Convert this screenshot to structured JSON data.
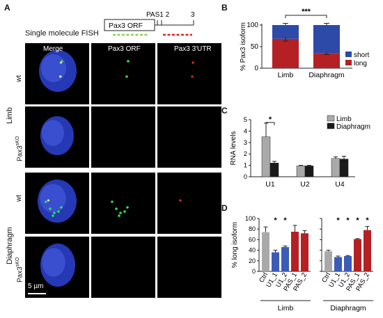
{
  "panel_a": {
    "letter": "A",
    "fish_title": "Single molecule FISH",
    "gene_diagram": {
      "orf_label": "Pax3 ORF",
      "pas_label": "PAS1 2",
      "pas3_label": "3",
      "probe_colors": {
        "orf": "#8fd14f",
        "utr": "#e02020"
      }
    },
    "columns": [
      "Merge",
      "Pax3 ORF",
      "Pax3 3'UTR"
    ],
    "groups": [
      "Limb",
      "Diaphragm"
    ],
    "rows": [
      {
        "genotype": "wt"
      },
      {
        "genotype": "Pax3"
      },
      {
        "genotype": "wt"
      },
      {
        "genotype": "Pax3"
      }
    ],
    "mutant_superscript": "sKO",
    "scale_bar": "5 µm",
    "colors": {
      "nucleus": "#2a3fc8",
      "orf_dot": "#2fe05a",
      "utr_dot": "#e03030"
    }
  },
  "chart_data": [
    {
      "panel": "B",
      "type": "bar",
      "stacked": true,
      "categories": [
        "Limb",
        "Diaphragm"
      ],
      "series": [
        {
          "name": "long",
          "values": [
            68,
            35
          ],
          "color": "#b52024"
        },
        {
          "name": "short",
          "values": [
            32,
            65
          ],
          "color": "#2d4aa8"
        }
      ],
      "error_top": [
        4,
        4
      ],
      "error_mid": [
        5,
        3
      ],
      "ylabel": "% Pax3 isoform",
      "ylim": [
        0,
        100
      ],
      "yticks": [
        0,
        50,
        100
      ],
      "significance": "***",
      "legend_position": "lower-right"
    },
    {
      "panel": "C",
      "type": "bar",
      "categories": [
        "U1",
        "U2",
        "U4"
      ],
      "series": [
        {
          "name": "Limb",
          "values": [
            3.5,
            0.95,
            1.6
          ],
          "errors": [
            1.2,
            0.05,
            0.15
          ],
          "color": "#a9a9a9"
        },
        {
          "name": "Diaphragm",
          "values": [
            1.2,
            0.95,
            1.55
          ],
          "errors": [
            0.15,
            0.05,
            0.25
          ],
          "color": "#1a1a1a"
        }
      ],
      "ylabel": "RNA levels",
      "ylim": [
        0,
        5
      ],
      "yticks": [
        0,
        1,
        2,
        3,
        4,
        5
      ],
      "significance": "*",
      "legend_position": "top-right"
    },
    {
      "panel": "D",
      "type": "bar",
      "groups": [
        {
          "name": "Limb",
          "categories": [
            "Ctrl",
            "U1_1",
            "U1_2",
            "PAS_1",
            "PAS_2"
          ],
          "values": [
            74,
            36,
            46,
            75,
            72
          ],
          "errors": [
            10,
            4,
            2,
            12,
            5
          ],
          "stars": [
            "",
            "*",
            "*",
            "",
            ""
          ],
          "colors": [
            "#a9a9a9",
            "#3b5bb8",
            "#3b5bb8",
            "#b52024",
            "#b52024"
          ]
        },
        {
          "name": "Diaphragm",
          "categories": [
            "Ctrl",
            "U1_1",
            "U1_2",
            "PAS_1",
            "PAS_2"
          ],
          "values": [
            38,
            27,
            29,
            61,
            78
          ],
          "errors": [
            2,
            2,
            1,
            1,
            7
          ],
          "stars": [
            "",
            "*",
            "*",
            "*",
            "*"
          ],
          "colors": [
            "#a9a9a9",
            "#3b5bb8",
            "#3b5bb8",
            "#b52024",
            "#b52024"
          ]
        }
      ],
      "ylabel": "% long isoform",
      "ylim": [
        0,
        100
      ],
      "yticks": [
        0,
        20,
        40,
        60,
        80,
        100
      ]
    }
  ]
}
